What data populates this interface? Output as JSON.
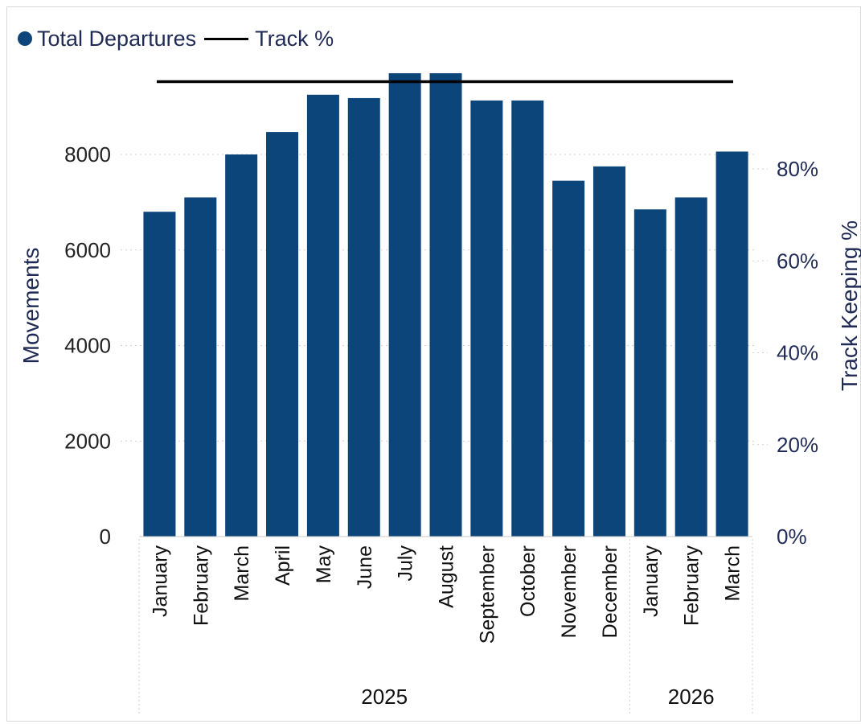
{
  "chart_data": {
    "type": "bar",
    "legend": [
      {
        "label": "Total Departures",
        "marker": "dot"
      },
      {
        "label": "Track %",
        "marker": "line"
      }
    ],
    "ylabel": "Movements",
    "y2label": "Track Keeping %",
    "ylim": [
      0,
      9600
    ],
    "y_ticks": [
      "0",
      "2000",
      "4000",
      "6000",
      "8000"
    ],
    "y_tick_values": [
      0,
      2000,
      4000,
      6000,
      8000
    ],
    "y2lim": [
      0,
      0.98
    ],
    "y2_ticks": [
      "0%",
      "20%",
      "40%",
      "60%",
      "80%"
    ],
    "y2_tick_values": [
      0,
      0.2,
      0.4,
      0.6,
      0.8
    ],
    "categories": [
      "January",
      "February",
      "March",
      "April",
      "May",
      "June",
      "July",
      "August",
      "September",
      "October",
      "November",
      "December",
      "January",
      "February",
      "March"
    ],
    "groups": [
      {
        "label": "2025",
        "count": 12
      },
      {
        "label": "2026",
        "count": 3
      }
    ],
    "series": [
      {
        "name": "Total Departures",
        "type": "bar",
        "values": [
          6800,
          7100,
          8000,
          8470,
          9250,
          9180,
          9700,
          9700,
          9130,
          9130,
          7450,
          7750,
          6850,
          7100,
          8060
        ]
      },
      {
        "name": "Track %",
        "type": "line",
        "axis": "right",
        "values": [
          0.99,
          0.99,
          0.99,
          0.99,
          0.99,
          0.99,
          0.99,
          0.99,
          0.99,
          0.99,
          0.99,
          0.99,
          0.99,
          0.99,
          0.99
        ]
      }
    ],
    "colors": {
      "bar": "#0b457a",
      "line": "#000000",
      "axis_text": "#1f2a55"
    },
    "grid": true
  }
}
